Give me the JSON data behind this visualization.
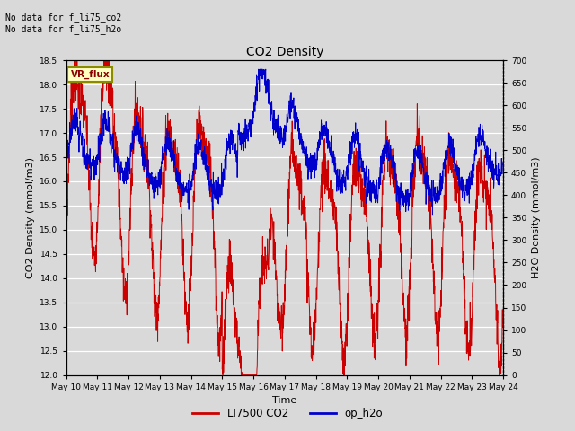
{
  "title": "CO2 Density",
  "xlabel": "Time",
  "ylabel_left": "CO2 Density (mmol/m3)",
  "ylabel_right": "H2O Density (mmol/m3)",
  "ylim_left": [
    12.0,
    18.5
  ],
  "ylim_right": [
    0,
    700
  ],
  "yticks_left": [
    12.0,
    12.5,
    13.0,
    13.5,
    14.0,
    14.5,
    15.0,
    15.5,
    16.0,
    16.5,
    17.0,
    17.5,
    18.0,
    18.5
  ],
  "yticks_right": [
    0,
    50,
    100,
    150,
    200,
    250,
    300,
    350,
    400,
    450,
    500,
    550,
    600,
    650,
    700
  ],
  "xtick_labels": [
    "May 10",
    "May 11",
    "May 12",
    "May 13",
    "May 14",
    "May 15",
    "May 16",
    "May 17",
    "May 18",
    "May 19",
    "May 20",
    "May 21",
    "May 22",
    "May 23",
    "May 24"
  ],
  "annotation_text": "No data for f_li75_co2\nNo data for f_li75_h2o",
  "vr_flux_label": "VR_flux",
  "legend_entries": [
    "LI7500 CO2",
    "op_h2o"
  ],
  "legend_colors": [
    "#cc0000",
    "#0000cc"
  ],
  "line_color_co2": "#cc0000",
  "line_color_h2o": "#0000cc",
  "background_color": "#d9d9d9",
  "plot_bg_color": "#d9d9d9",
  "grid_color": "#ffffff",
  "n_points": 2000,
  "seed": 7
}
